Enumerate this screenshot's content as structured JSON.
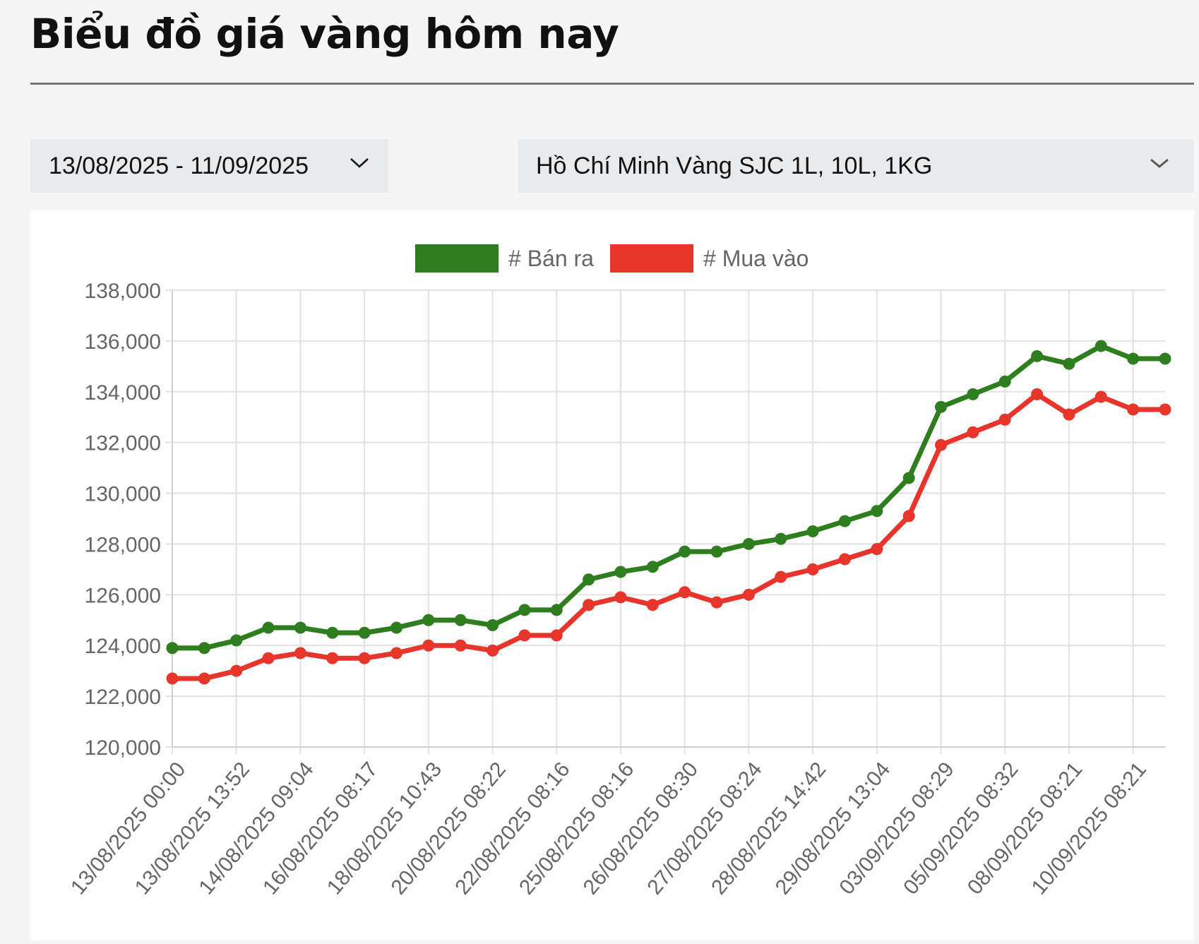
{
  "header": {
    "title": "Biểu đồ giá vàng hôm nay"
  },
  "filters": {
    "date_range": "13/08/2025 - 11/09/2025",
    "location_product": "Hồ Chí Minh Vàng SJC 1L, 10L, 1KG",
    "date_icon": "chevron-down-icon",
    "location_icon": "chevron-down-icon"
  },
  "chart_data": {
    "type": "line",
    "title": "",
    "xlabel": "",
    "ylabel": "",
    "grid": true,
    "legend_position": "top-center",
    "ylim": [
      120000,
      138000
    ],
    "y_ticks": [
      120000,
      122000,
      124000,
      126000,
      128000,
      130000,
      132000,
      134000,
      136000,
      138000
    ],
    "y_tick_labels": [
      "120,000",
      "122,000",
      "124,000",
      "126,000",
      "128,000",
      "130,000",
      "132,000",
      "134,000",
      "136,000",
      "138,000"
    ],
    "x": [
      "13/08/2025 00:00",
      "",
      "13/08/2025 13:52",
      "",
      "14/08/2025 09:04",
      "",
      "16/08/2025 08:17",
      "",
      "18/08/2025 10:43",
      "",
      "20/08/2025 08:22",
      "",
      "22/08/2025 08:16",
      "",
      "25/08/2025 08:16",
      "",
      "26/08/2025 08:30",
      "",
      "27/08/2025 08:24",
      "",
      "28/08/2025 14:42",
      "",
      "29/08/2025 13:04",
      "",
      "03/09/2025 08:29",
      "",
      "05/09/2025 08:32",
      "",
      "08/09/2025 08:21",
      "",
      "10/09/2025 08:21",
      ""
    ],
    "series": [
      {
        "name": "# Bán ra",
        "color": "#2e7d1f",
        "values": [
          123900,
          123900,
          124200,
          124700,
          124700,
          124500,
          124500,
          124700,
          125000,
          125000,
          124800,
          125400,
          125400,
          126600,
          126900,
          127100,
          127700,
          127700,
          128000,
          128200,
          128500,
          128900,
          129300,
          130600,
          133400,
          133900,
          134400,
          135400,
          135100,
          135800,
          135300,
          135300
        ]
      },
      {
        "name": "# Mua vào",
        "color": "#e8352b",
        "values": [
          122700,
          122700,
          123000,
          123500,
          123700,
          123500,
          123500,
          123700,
          124000,
          124000,
          123800,
          124400,
          124400,
          125600,
          125900,
          125600,
          126100,
          125700,
          126000,
          126700,
          127000,
          127400,
          127800,
          129100,
          131900,
          132400,
          132900,
          133900,
          133100,
          133800,
          133300,
          133300
        ]
      }
    ]
  }
}
